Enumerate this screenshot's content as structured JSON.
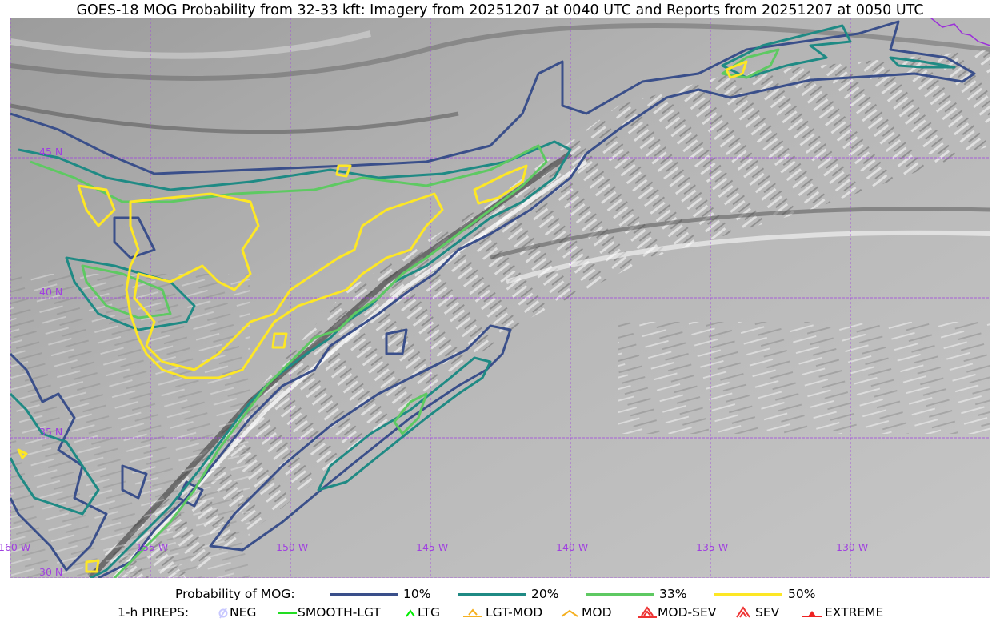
{
  "title": "GOES-18 MOG Probability from 32-33 kft: Imagery from 20251207 at 0040 UTC and Reports from 20251207 at 0050 UTC",
  "map": {
    "grid_color": "#a040e0",
    "coast_color": "#9b30d9",
    "longitude_labels": [
      "160 W",
      "155 W",
      "150 W",
      "145 W",
      "140 W",
      "135 W",
      "130 W"
    ],
    "latitude_labels": [
      "45 N",
      "40 N",
      "35 N",
      "30 N"
    ]
  },
  "legend": {
    "probability_label": "Probability of MOG:",
    "probability_items": [
      {
        "label": "10%",
        "color": "#3a4f8a"
      },
      {
        "label": "20%",
        "color": "#1f8a84"
      },
      {
        "label": "33%",
        "color": "#5ec962"
      },
      {
        "label": "50%",
        "color": "#fde725"
      }
    ],
    "pireps_label": "1-h PIREPS:",
    "pirep_items": [
      {
        "label": "NEG",
        "icon": "neg-circle-slash-icon",
        "color": "#c8c8ff"
      },
      {
        "label": "SMOOTH-LGT",
        "icon": "line-icon",
        "color": "#22dd22"
      },
      {
        "label": "LTG",
        "icon": "caret-icon",
        "color": "#00ee00"
      },
      {
        "label": "LGT-MOD",
        "icon": "triangle-bar-icon",
        "color": "#f5b020"
      },
      {
        "label": "MOD",
        "icon": "caret-icon",
        "color": "#f5b020"
      },
      {
        "label": "MOD-SEV",
        "icon": "double-triangle-bar-icon",
        "color": "#ee3333"
      },
      {
        "label": "SEV",
        "icon": "double-caret-icon",
        "color": "#ee3333"
      },
      {
        "label": "EXTREME",
        "icon": "filled-triangle-icon",
        "color": "#ee2222"
      }
    ]
  }
}
